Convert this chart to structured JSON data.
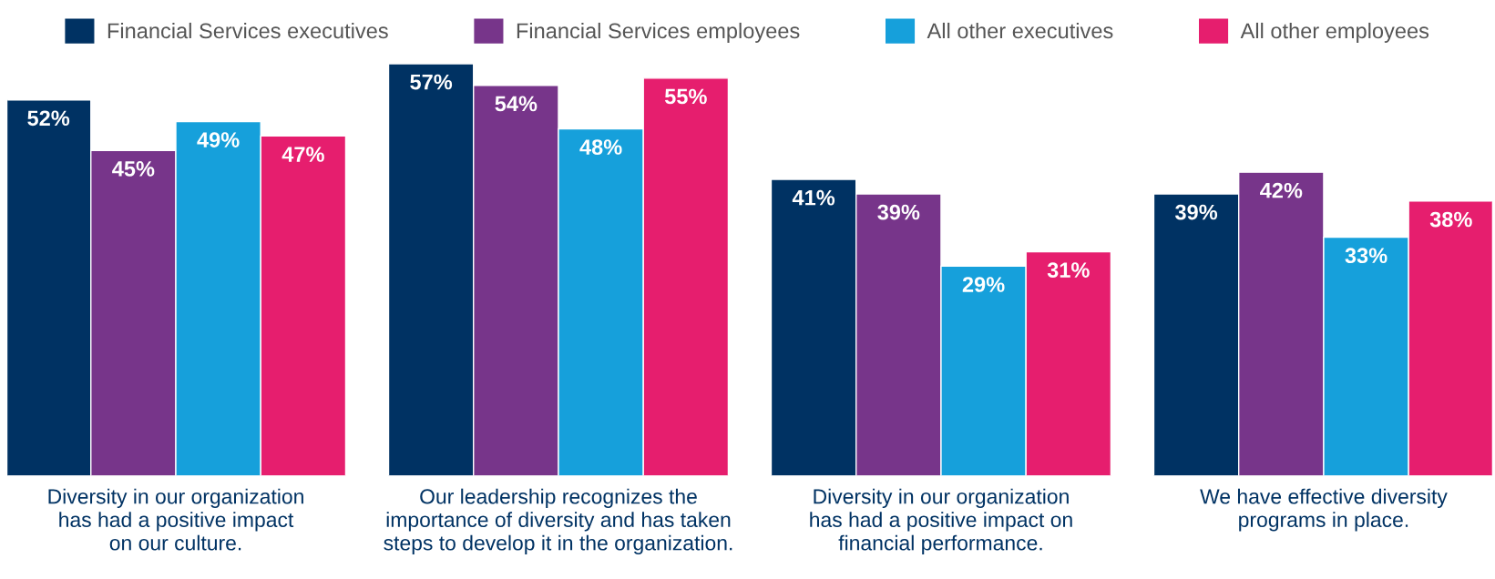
{
  "chart_data": {
    "type": "bar",
    "categories": [
      "Diversity in our organization\nhas had a positive impact\non our culture.",
      "Our leadership recognizes the\nimportance of diversity and has taken\nsteps to develop it in the organization.",
      "Diversity in our organization\nhas had a positive impact on\nfinancial performance.",
      "We have effective diversity\nprograms in place."
    ],
    "series": [
      {
        "name": "Financial Services executives",
        "color": "#003263",
        "values": [
          52,
          57,
          41,
          39
        ],
        "value_labels": [
          "52%",
          "57%",
          "41%",
          "39%"
        ]
      },
      {
        "name": "Financial Services employees",
        "color": "#77358a",
        "values": [
          45,
          54,
          39,
          42
        ],
        "value_labels": [
          "45%",
          "54%",
          "39%",
          "42%"
        ]
      },
      {
        "name": "All other executives",
        "color": "#16a0db",
        "values": [
          49,
          48,
          29,
          33
        ],
        "value_labels": [
          "49%",
          "48%",
          "29%",
          "33%"
        ]
      },
      {
        "name": "All other employees",
        "color": "#e61e6e",
        "values": [
          47,
          55,
          31,
          38
        ],
        "value_labels": [
          "47%",
          "55%",
          "31%",
          "38%"
        ]
      }
    ],
    "legend": "top",
    "grid": false,
    "tick_labels": "x"
  }
}
